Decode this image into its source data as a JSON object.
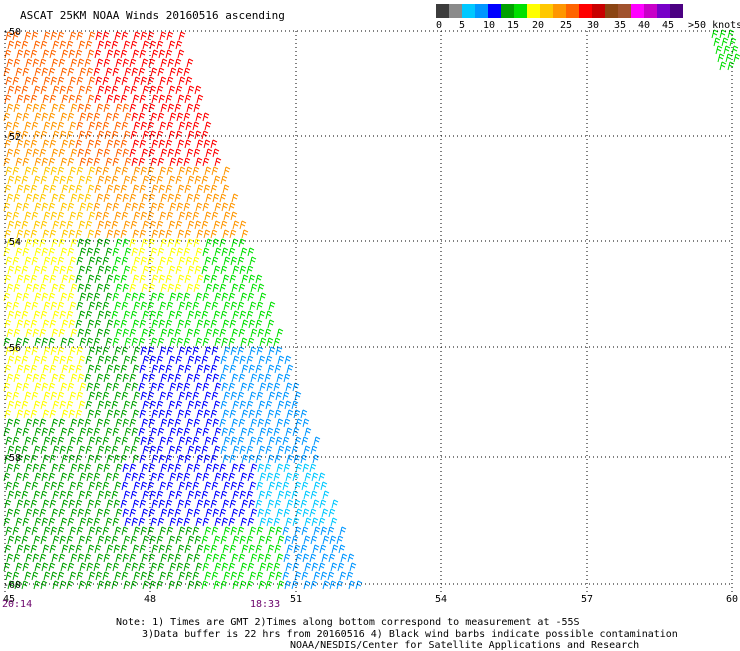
{
  "title": "ASCAT 25KM NOAA Winds 20160516 ascending",
  "legend": {
    "labels": [
      "0",
      "5",
      "10",
      "15",
      "20",
      "25",
      "30",
      "35",
      "40",
      "45",
      ">50 knots"
    ],
    "colors": [
      "#3c3c3c",
      "#8a8a8a",
      "#00c8ff",
      "#0096ff",
      "#0000ff",
      "#00a000",
      "#00e000",
      "#ffff00",
      "#ffc800",
      "#ff9600",
      "#ff6400",
      "#ff0000",
      "#c80000",
      "#8b4513",
      "#a0522d",
      "#ff00ff",
      "#c800c8",
      "#7800c8",
      "#4b0082"
    ]
  },
  "map": {
    "x_ticks": [
      "45",
      "48",
      "51",
      "54",
      "57",
      "60"
    ],
    "y_ticks": [
      "-50",
      "-52",
      "-54",
      "-56",
      "-58",
      "-60"
    ]
  },
  "times": {
    "left": "20:14",
    "mid": "18:33"
  },
  "notes": {
    "line1": "Note: 1) Times are GMT 2)Times along bottom correspond to measurement at -55S",
    "line2": "3)Data buffer is 22 hrs from 20160516 4) Black wind barbs indicate possible contamination",
    "line3": "NOAA/NESDIS/Center for Satellite Applications and Research"
  }
}
